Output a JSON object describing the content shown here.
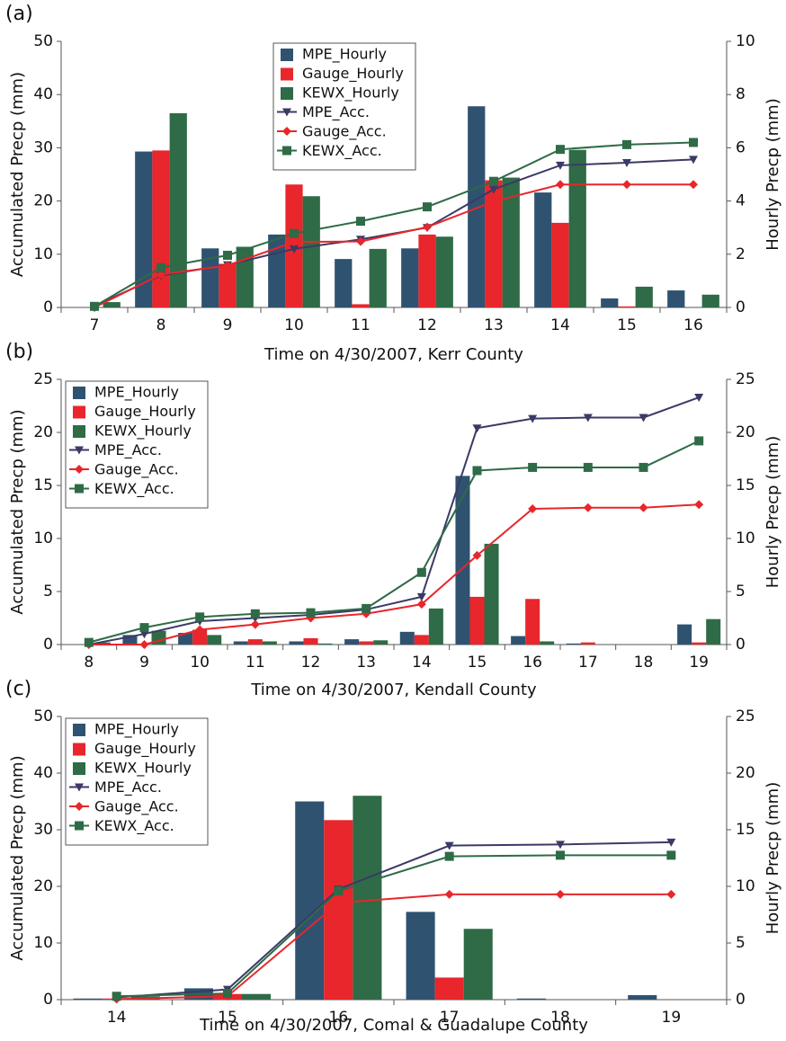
{
  "chart_data": [
    {
      "type": "combo",
      "title": "(a)",
      "x_label": "Time on 4/30/2007, Kerr County",
      "y_label": "Accumulated Precp (mm)",
      "y2_label": "Hourly Precp (mm)",
      "legend": "top-center",
      "categories": [
        "7",
        "8",
        "9",
        "10",
        "11",
        "12",
        "13",
        "14",
        "15",
        "16"
      ],
      "ylim": [
        0,
        50
      ],
      "yticks": [
        0,
        10,
        20,
        30,
        40,
        50
      ],
      "y2lim": [
        0,
        10
      ],
      "y2ticks": [
        0,
        2,
        4,
        6,
        8,
        10
      ],
      "series": [
        {
          "name": "MPE_Hourly",
          "type": "bar",
          "axis": "y2",
          "color": "#2f5271",
          "values": [
            0,
            5.86,
            2.22,
            2.74,
            1.82,
            2.22,
            7.56,
            4.32,
            0.34,
            0.64
          ]
        },
        {
          "name": "Gauge_Hourly",
          "type": "bar",
          "axis": "y2",
          "color": "#e8262b",
          "values": [
            0,
            5.9,
            1.64,
            4.62,
            0.12,
            2.74,
            4.78,
            3.18,
            0.04,
            0
          ]
        },
        {
          "name": "KEWX_Hourly",
          "type": "bar",
          "axis": "y2",
          "color": "#2e6b46",
          "values": [
            0.2,
            7.3,
            2.28,
            4.18,
            2.2,
            2.66,
            4.88,
            5.92,
            0.78,
            0.48
          ]
        },
        {
          "name": "MPE_Acc.",
          "type": "line",
          "marker": "triangle-down",
          "color": "#3b3a66",
          "values": [
            0.3,
            6.0,
            8.0,
            11.0,
            12.8,
            15.0,
            22.2,
            26.7,
            27.2,
            27.8
          ]
        },
        {
          "name": "Gauge_Acc.",
          "type": "line",
          "marker": "diamond",
          "color": "#e8262b",
          "values": [
            0,
            6.2,
            7.9,
            12.3,
            12.4,
            15.1,
            19.9,
            23.1,
            23.1,
            23.1
          ]
        },
        {
          "name": "KEWX_Acc.",
          "type": "line",
          "marker": "square",
          "color": "#2e6b46",
          "values": [
            0.2,
            7.5,
            9.8,
            13.9,
            16.2,
            18.9,
            23.7,
            29.7,
            30.6,
            31.0
          ]
        }
      ]
    },
    {
      "type": "combo",
      "title": "(b)",
      "x_label": "Time on 4/30/2007, Kendall County",
      "y_label": "Accumulated Precp (mm)",
      "y2_label": "Hourly Precp (mm)",
      "legend": "top-left",
      "categories": [
        "8",
        "9",
        "10",
        "11",
        "12",
        "13",
        "14",
        "15",
        "16",
        "17",
        "18",
        "19"
      ],
      "ylim": [
        0,
        25
      ],
      "yticks": [
        0,
        5,
        10,
        15,
        20,
        25
      ],
      "y2lim": [
        0,
        25
      ],
      "y2ticks": [
        0,
        5,
        10,
        15,
        20,
        25
      ],
      "series": [
        {
          "name": "MPE_Hourly",
          "type": "bar",
          "axis": "y2",
          "color": "#2f5271",
          "values": [
            0,
            0.9,
            1.1,
            0.3,
            0.3,
            0.5,
            1.2,
            15.9,
            0.8,
            0.1,
            0,
            1.9
          ]
        },
        {
          "name": "Gauge_Hourly",
          "type": "bar",
          "axis": "y2",
          "color": "#e8262b",
          "values": [
            0,
            0,
            1.4,
            0.5,
            0.6,
            0.3,
            0.9,
            4.5,
            4.3,
            0.2,
            0,
            0.2
          ]
        },
        {
          "name": "KEWX_Hourly",
          "type": "bar",
          "axis": "y2",
          "color": "#2e6b46",
          "values": [
            0.2,
            1.3,
            0.9,
            0.3,
            0.1,
            0.4,
            3.4,
            9.5,
            0.3,
            0,
            0,
            2.4
          ]
        },
        {
          "name": "MPE_Acc.",
          "type": "line",
          "marker": "triangle-down",
          "color": "#3b3a66",
          "values": [
            0,
            1.0,
            2.2,
            2.5,
            2.8,
            3.3,
            4.5,
            20.4,
            21.3,
            21.4,
            21.4,
            23.3
          ]
        },
        {
          "name": "Gauge_Acc.",
          "type": "line",
          "marker": "diamond",
          "color": "#e8262b",
          "values": [
            0,
            0,
            1.4,
            1.9,
            2.5,
            2.9,
            3.8,
            8.4,
            12.8,
            12.9,
            12.9,
            13.2
          ]
        },
        {
          "name": "KEWX_Acc.",
          "type": "line",
          "marker": "square",
          "color": "#2e6b46",
          "values": [
            0.2,
            1.6,
            2.6,
            2.9,
            3.0,
            3.4,
            6.8,
            16.4,
            16.7,
            16.7,
            16.7,
            19.2
          ]
        }
      ]
    },
    {
      "type": "combo",
      "title": "(c)",
      "x_label": "Time on 4/30/2007, Comal & Guadalupe  County",
      "y_label": "Accumulated Precp (mm)",
      "y2_label": "Hourly Precp (mm)",
      "legend": "top-left",
      "categories": [
        "14",
        "15",
        "16",
        "17",
        "18",
        "19"
      ],
      "ylim": [
        0,
        50
      ],
      "yticks": [
        0,
        10,
        20,
        30,
        40,
        50
      ],
      "y2lim": [
        0,
        25
      ],
      "y2ticks": [
        0,
        5,
        10,
        15,
        20,
        25
      ],
      "series": [
        {
          "name": "MPE_Hourly",
          "type": "bar",
          "axis": "y2",
          "color": "#2f5271",
          "values": [
            0.1,
            1.0,
            17.5,
            7.75,
            0.1,
            0.4
          ]
        },
        {
          "name": "Gauge_Hourly",
          "type": "bar",
          "axis": "y2",
          "color": "#e8262b",
          "values": [
            0.1,
            0.5,
            15.85,
            1.95,
            0,
            0
          ]
        },
        {
          "name": "KEWX_Hourly",
          "type": "bar",
          "axis": "y2",
          "color": "#2e6b46",
          "values": [
            0.3,
            0.5,
            18,
            6.25,
            0,
            0
          ]
        },
        {
          "name": "MPE_Acc.",
          "type": "line",
          "marker": "triangle-down",
          "color": "#3b3a66",
          "values": [
            0.4,
            1.8,
            19.5,
            27.2,
            27.4,
            27.8
          ]
        },
        {
          "name": "Gauge_Acc.",
          "type": "line",
          "marker": "diamond",
          "color": "#e8262b",
          "values": [
            0.1,
            0.6,
            17.1,
            18.6,
            18.6,
            18.6
          ]
        },
        {
          "name": "KEWX_Acc.",
          "type": "line",
          "marker": "square",
          "color": "#2e6b46",
          "values": [
            0.6,
            1.1,
            19.2,
            25.3,
            25.5,
            25.5
          ]
        }
      ]
    }
  ]
}
